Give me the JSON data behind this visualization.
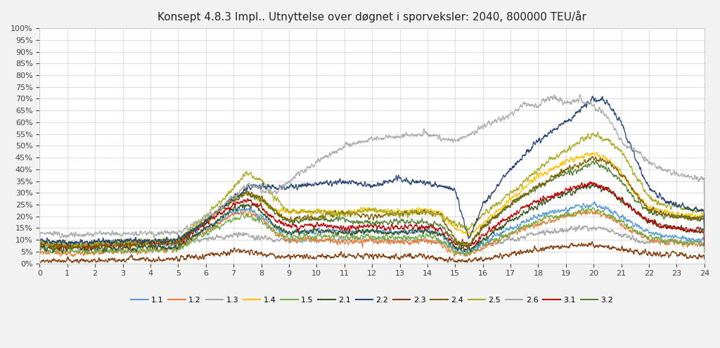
{
  "title": "Konsept 4.8.3 Impl.. Utnyttelse over døgnet i sporveksler: 2040, 800000 TEU/år",
  "xlim": [
    0,
    24
  ],
  "ylim": [
    0,
    1.0
  ],
  "yticks": [
    0,
    0.05,
    0.1,
    0.15,
    0.2,
    0.25,
    0.3,
    0.35,
    0.4,
    0.45,
    0.5,
    0.55,
    0.6,
    0.65,
    0.7,
    0.75,
    0.8,
    0.85,
    0.9,
    0.95,
    1.0
  ],
  "xticks": [
    0,
    1,
    2,
    3,
    4,
    5,
    6,
    7,
    8,
    9,
    10,
    11,
    12,
    13,
    14,
    15,
    16,
    17,
    18,
    19,
    20,
    21,
    22,
    23,
    24
  ],
  "legend_labels": [
    "1.1",
    "1.2",
    "1.3",
    "1.4",
    "1.5",
    "2.1",
    "2.2",
    "2.3",
    "2.4",
    "2.5",
    "2.6",
    "3.1",
    "3.2"
  ],
  "colors": {
    "1.1": "#5B9BD5",
    "1.2": "#ED7D31",
    "1.3": "#A5A5A5",
    "1.4": "#FFC000",
    "1.5": "#70AD47",
    "2.1": "#375623",
    "2.2": "#264478",
    "2.3": "#843C0C",
    "2.4": "#7F6000",
    "2.5": "#AAAA00",
    "2.6": "#B0B0B0",
    "3.1": "#C00000",
    "3.2": "#375623"
  },
  "background_color": "#f2f2f2",
  "plot_bg": "#ffffff",
  "title_fontsize": 11
}
